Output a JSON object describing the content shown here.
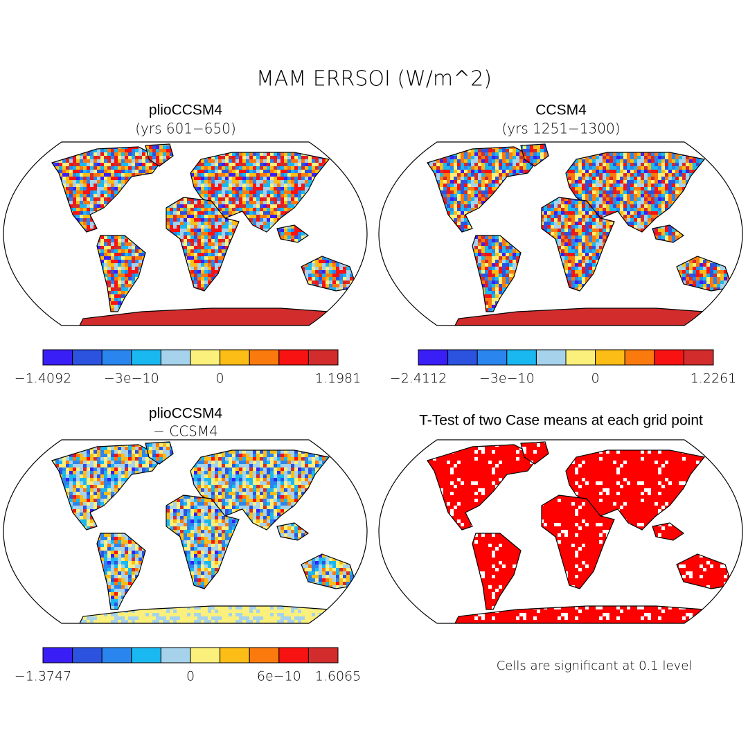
{
  "title": "MAM ERRSOI (W/m^2)",
  "panels": [
    {
      "title": "plioCCSM4",
      "subtitle": "(yrs 601−650)",
      "colorbar": {
        "colors": [
          "#3a1ef6",
          "#2c52e0",
          "#2a86ee",
          "#1ab8f0",
          "#a6d2ec",
          "#fbf07c",
          "#fbbd16",
          "#fa7a0e",
          "#f81212",
          "#d22c2c"
        ],
        "tick_labels": [
          "−1.4092",
          null,
          null,
          "−3e−10",
          null,
          null,
          "0",
          null,
          null,
          null,
          "1.1981"
        ]
      }
    },
    {
      "title": "CCSM4",
      "subtitle": "(yrs 1251−1300)",
      "colorbar": {
        "colors": [
          "#3a1ef6",
          "#2c52e0",
          "#2a86ee",
          "#1ab8f0",
          "#a6d2ec",
          "#fbf07c",
          "#fbbd16",
          "#fa7a0e",
          "#f81212",
          "#d22c2c"
        ],
        "tick_labels": [
          "−2.4112",
          null,
          null,
          "−3e−10",
          null,
          null,
          "0",
          null,
          null,
          null,
          "1.2261"
        ]
      }
    },
    {
      "title": "plioCCSM4",
      "subtitle": "− CCSM4",
      "colorbar": {
        "colors": [
          "#3a1ef6",
          "#2c52e0",
          "#2a86ee",
          "#1ab8f0",
          "#a6d2ec",
          "#fbf07c",
          "#fbbd16",
          "#fa7a0e",
          "#f81212",
          "#d22c2c"
        ],
        "tick_labels": [
          "−1.3747",
          null,
          null,
          null,
          null,
          "0",
          null,
          null,
          "6e−10",
          null,
          "1.6065"
        ]
      }
    },
    {
      "title": "T-Test of two Case means at each grid point",
      "fill_color": "#ff0000",
      "note": "Cells are significant at 0.1 level"
    }
  ]
}
